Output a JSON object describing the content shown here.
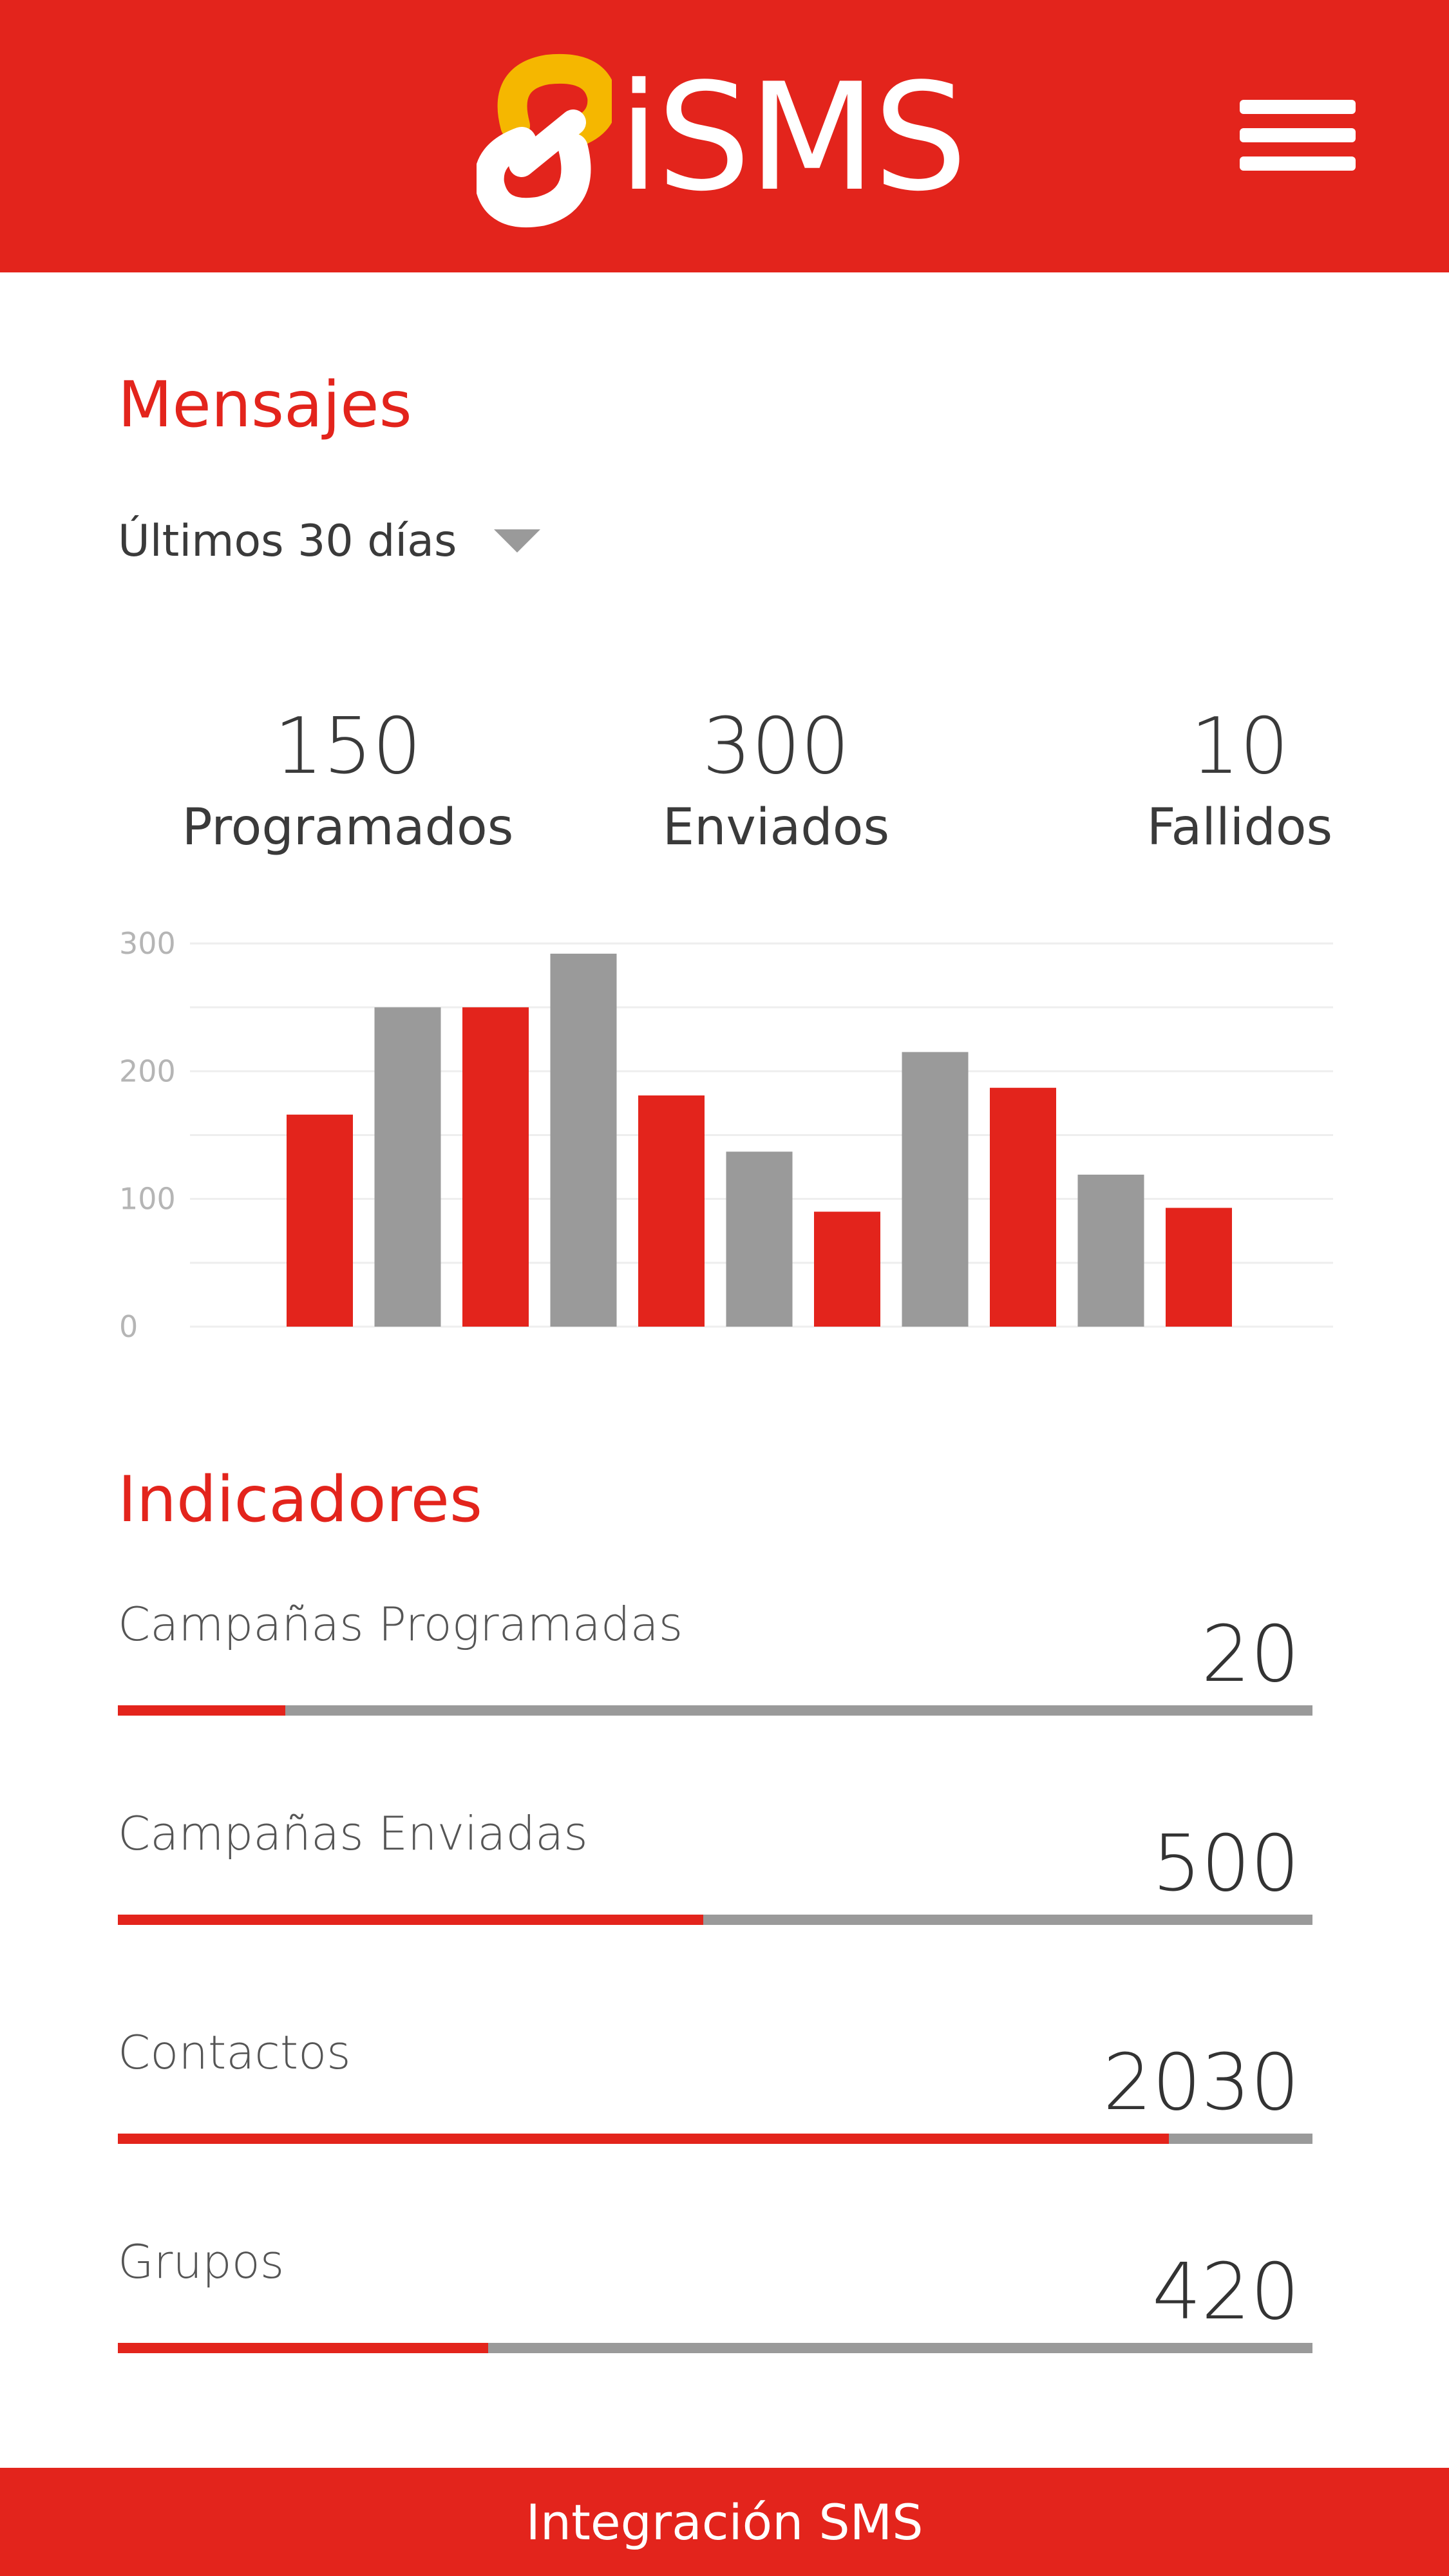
{
  "header": {
    "logo_text": "iSMS",
    "menu_icon": "hamburger-menu-icon"
  },
  "colors": {
    "brand_red": "#e3241c",
    "logo_yellow": "#f5b700",
    "bar_gray": "#9a9a9a"
  },
  "messages": {
    "title": "Mensajes",
    "period": {
      "selected": "Últimos 30 días"
    },
    "stats": [
      {
        "value": "150",
        "label": "Programados"
      },
      {
        "value": "300",
        "label": "Enviados"
      },
      {
        "value": "10",
        "label": "Fallidos"
      }
    ]
  },
  "chart_data": {
    "type": "bar",
    "title": "",
    "xlabel": "",
    "ylabel": "",
    "ylim": [
      0,
      300
    ],
    "yticks": [
      "0",
      "100",
      "200",
      "300"
    ],
    "grid": true,
    "legend": "none",
    "values": [
      166,
      250,
      250,
      292,
      181,
      137,
      90,
      215,
      187,
      119,
      93
    ],
    "bar_colors": [
      "red",
      "gray",
      "red",
      "gray",
      "red",
      "gray",
      "red",
      "gray",
      "red",
      "gray",
      "red"
    ]
  },
  "indicators": {
    "title": "Indicadores",
    "items": [
      {
        "label": "Campañas Programadas",
        "value": "20",
        "fill": 0.14
      },
      {
        "label": "Campañas Enviadas",
        "value": "500",
        "fill": 0.49
      },
      {
        "label": "Contactos",
        "value": "2030",
        "fill": 0.88
      },
      {
        "label": "Grupos",
        "value": "420",
        "fill": 0.31
      }
    ]
  },
  "footer": {
    "label": "Integración SMS"
  }
}
